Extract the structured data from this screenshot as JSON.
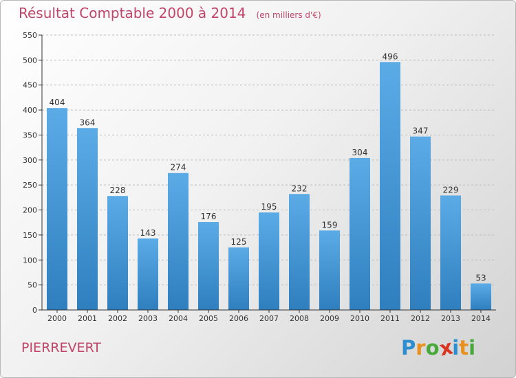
{
  "header": {
    "title": "Résultat Comptable 2000 à 2014",
    "unit_note": "(en milliers d'€)"
  },
  "footer": {
    "location": "PIERREVERT",
    "logo_letters": [
      {
        "char": "P",
        "color": "#2a8ed0"
      },
      {
        "char": "r",
        "color": "#e8901e"
      },
      {
        "char": "o",
        "color": "#49a83a"
      },
      {
        "char": "x",
        "color": "#d9341f"
      },
      {
        "char": "i",
        "color": "#2a8ed0"
      },
      {
        "char": "t",
        "color": "#e8901e"
      },
      {
        "char": "i",
        "color": "#49a83a"
      }
    ]
  },
  "colors": {
    "bar_top": "#5aabe6",
    "bar_bottom": "#2f7fbf",
    "title": "#c1456a",
    "axis": "#333333",
    "grid": "#bdbdbd"
  },
  "chart_data": {
    "type": "bar",
    "categories": [
      "2000",
      "2001",
      "2002",
      "2003",
      "2004",
      "2005",
      "2006",
      "2007",
      "2008",
      "2009",
      "2010",
      "2011",
      "2012",
      "2013",
      "2014"
    ],
    "values": [
      404,
      364,
      228,
      143,
      274,
      176,
      125,
      195,
      232,
      159,
      304,
      496,
      347,
      229,
      53
    ],
    "ylim": [
      0,
      550
    ],
    "yticks": [
      0,
      50,
      100,
      150,
      200,
      250,
      300,
      350,
      400,
      450,
      500,
      550
    ],
    "grid": "horizontal dashed",
    "legend": "none"
  }
}
